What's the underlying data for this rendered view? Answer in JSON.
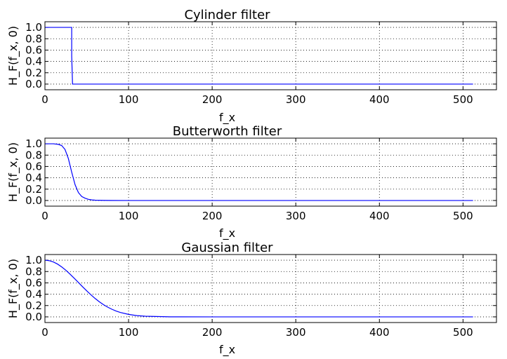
{
  "chart_data": [
    {
      "type": "line",
      "title": "Cylinder filter",
      "xlabel": "f_x",
      "ylabel": "H_F(f_x, 0)",
      "xlim": [
        0,
        540
      ],
      "ylim": [
        -0.1,
        1.1
      ],
      "xticks": [
        "0",
        "100",
        "200",
        "300",
        "400",
        "500"
      ],
      "yticks": [
        "0.0",
        "0.2",
        "0.4",
        "0.6",
        "0.8",
        "1.0"
      ],
      "grid": true,
      "series": [
        {
          "color": "#0000ff",
          "x": [
            0,
            32,
            32,
            33,
            512
          ],
          "y": [
            1.0,
            1.0,
            0.5,
            0.0,
            0.0
          ]
        }
      ]
    },
    {
      "type": "line",
      "title": "Butterworth filter",
      "xlabel": "f_x",
      "ylabel": "H_F(f_x, 0)",
      "xlim": [
        0,
        540
      ],
      "ylim": [
        -0.1,
        1.1
      ],
      "xticks": [
        "0",
        "100",
        "200",
        "300",
        "400",
        "500"
      ],
      "yticks": [
        "0.0",
        "0.2",
        "0.4",
        "0.6",
        "0.8",
        "1.0"
      ],
      "grid": true,
      "series": [
        {
          "color": "#0000ff",
          "x": [
            0,
            10,
            16,
            20,
            24,
            28,
            30,
            32,
            34,
            36,
            40,
            44,
            48,
            52,
            56,
            60,
            70,
            80,
            100,
            150,
            200,
            300,
            400,
            512
          ],
          "y": [
            1.0,
            1.0,
            0.99,
            0.97,
            0.9,
            0.74,
            0.62,
            0.5,
            0.39,
            0.28,
            0.14,
            0.07,
            0.04,
            0.02,
            0.01,
            0.005,
            0.002,
            0.001,
            0.0,
            0.0,
            0.0,
            0.0,
            0.0,
            0.0
          ]
        }
      ]
    },
    {
      "type": "line",
      "title": "Gaussian filter",
      "xlabel": "f_x",
      "ylabel": "H_F(f_x, 0)",
      "xlim": [
        0,
        540
      ],
      "ylim": [
        -0.1,
        1.1
      ],
      "xticks": [
        "0",
        "100",
        "200",
        "300",
        "400",
        "500"
      ],
      "yticks": [
        "0.0",
        "0.2",
        "0.4",
        "0.6",
        "0.8",
        "1.0"
      ],
      "grid": true,
      "series": [
        {
          "color": "#0000ff",
          "x": [
            0,
            5,
            10,
            15,
            20,
            25,
            30,
            35,
            40,
            45,
            50,
            55,
            60,
            65,
            70,
            75,
            80,
            85,
            90,
            100,
            110,
            120,
            150,
            200,
            300,
            400,
            512
          ],
          "y": [
            1.0,
            0.992,
            0.969,
            0.932,
            0.882,
            0.822,
            0.755,
            0.682,
            0.607,
            0.532,
            0.459,
            0.389,
            0.325,
            0.267,
            0.216,
            0.172,
            0.135,
            0.104,
            0.079,
            0.044,
            0.022,
            0.011,
            0.001,
            0.0,
            0.0,
            0.0,
            0.0
          ]
        }
      ]
    }
  ]
}
